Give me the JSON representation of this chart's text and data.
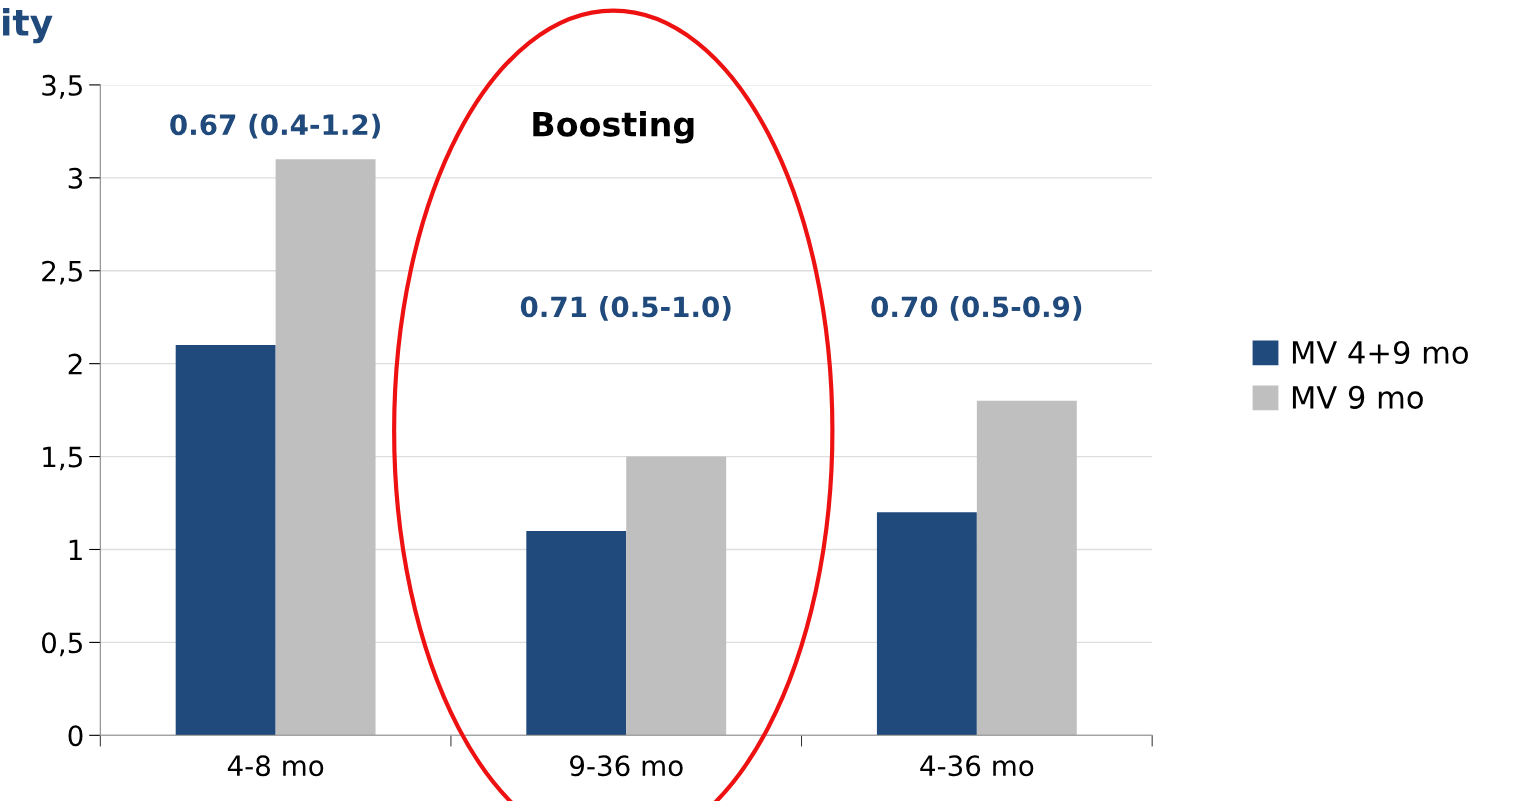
{
  "chart_data": {
    "type": "bar",
    "ylabel": "ity",
    "categories": [
      "4-8 mo",
      "9-36 mo",
      "4-36 mo"
    ],
    "series": [
      {
        "name": "MV 4+9 mo",
        "color": "#214a7c",
        "values": [
          2.1,
          1.1,
          1.2
        ]
      },
      {
        "name": "MV 9 mo",
        "color": "#bfbfbf",
        "values": [
          3.1,
          1.5,
          1.8
        ]
      }
    ],
    "ylim": [
      0,
      3.5
    ],
    "yticks": [
      0,
      {
        "value": 0.5,
        "label": "0,5"
      },
      1,
      {
        "value": 1.5,
        "label": "1,5"
      },
      2,
      {
        "value": 2.5,
        "label": "2,5"
      },
      3,
      {
        "value": 3.5,
        "label": "3,5"
      }
    ],
    "grid": "y",
    "legend": "right",
    "annotations": [
      "0.67 (0.4-1.2)",
      "Boosting",
      "0.71 (0.5-1.0)",
      "0.70 (0.5-0.9)"
    ]
  }
}
